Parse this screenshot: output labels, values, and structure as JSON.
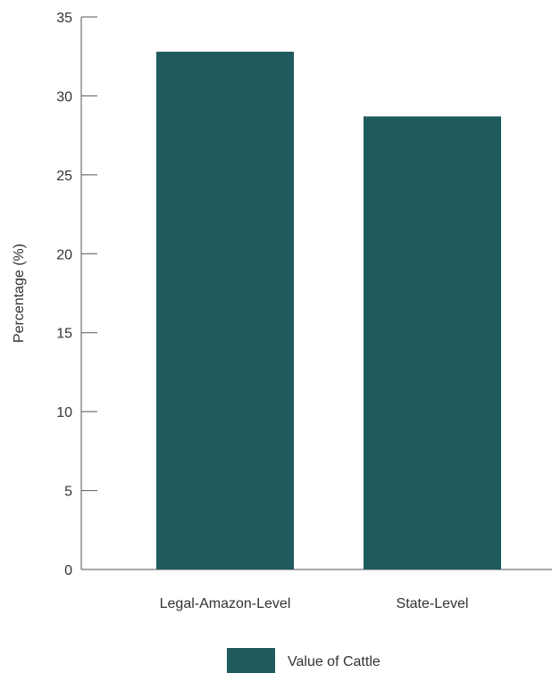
{
  "chart_data": {
    "type": "bar",
    "categories": [
      "Legal-Amazon-Level",
      "State-Level"
    ],
    "series": [
      {
        "name": "Value of Cattle",
        "values": [
          32.8,
          28.7
        ],
        "color": "#1f5a5e"
      }
    ],
    "title": "",
    "xlabel": "",
    "ylabel": "Percentage (%)",
    "ylim": [
      0,
      35
    ],
    "yticks": [
      0,
      5,
      10,
      15,
      20,
      25,
      30,
      35
    ],
    "grid": false,
    "legend_position": "bottom-center"
  }
}
